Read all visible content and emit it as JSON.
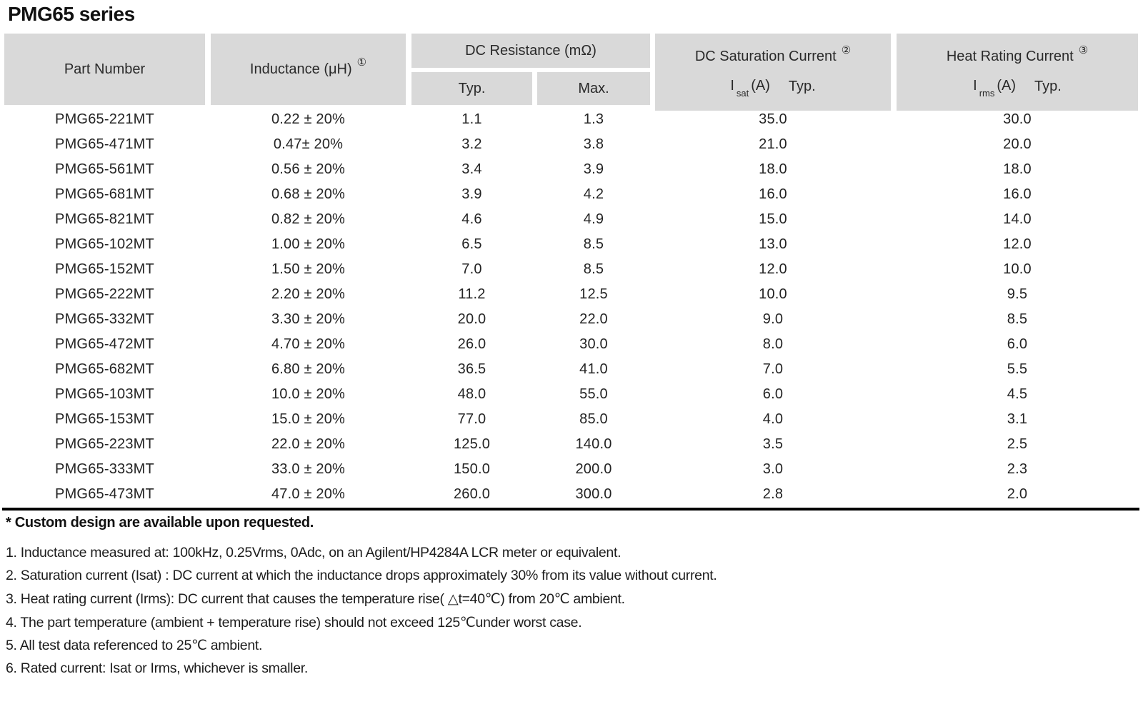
{
  "page": {
    "title": "PMG65 series"
  },
  "colors": {
    "header_bg": "#d9d9d9",
    "rule": "#000000",
    "text": "#1e1e1e"
  },
  "table": {
    "header": {
      "part_number": "Part Number",
      "inductance": {
        "label": "Inductance (μH)",
        "sup": "①"
      },
      "dc_resistance": {
        "label": "DC Resistance (mΩ)",
        "typ": "Typ.",
        "max": "Max."
      },
      "dc_saturation": {
        "label": "DC Saturation Current",
        "sup": "②",
        "sym_base": "I",
        "sym_sub": "sat",
        "sym_rest": "(A)",
        "qual": "Typ."
      },
      "heat_rating": {
        "label": "Heat Rating Current",
        "sup": "③",
        "sym_base": "I",
        "sym_sub": "rms",
        "sym_rest": "(A)",
        "qual": "Typ."
      }
    },
    "rows": [
      [
        "PMG65-221MT",
        "0.22 ± 20%",
        "1.1",
        "1.3",
        "35.0",
        "30.0"
      ],
      [
        "PMG65-471MT",
        "0.47± 20%",
        "3.2",
        "3.8",
        "21.0",
        "20.0"
      ],
      [
        "PMG65-561MT",
        "0.56 ± 20%",
        "3.4",
        "3.9",
        "18.0",
        "18.0"
      ],
      [
        "PMG65-681MT",
        "0.68 ± 20%",
        "3.9",
        "4.2",
        "16.0",
        "16.0"
      ],
      [
        "PMG65-821MT",
        "0.82 ± 20%",
        "4.6",
        "4.9",
        "15.0",
        "14.0"
      ],
      [
        "PMG65-102MT",
        "1.00 ± 20%",
        "6.5",
        "8.5",
        "13.0",
        "12.0"
      ],
      [
        "PMG65-152MT",
        "1.50 ± 20%",
        "7.0",
        "8.5",
        "12.0",
        "10.0"
      ],
      [
        "PMG65-222MT",
        "2.20 ± 20%",
        "11.2",
        "12.5",
        "10.0",
        "9.5"
      ],
      [
        "PMG65-332MT",
        "3.30 ± 20%",
        "20.0",
        "22.0",
        "9.0",
        "8.5"
      ],
      [
        "PMG65-472MT",
        "4.70 ± 20%",
        "26.0",
        "30.0",
        "8.0",
        "6.0"
      ],
      [
        "PMG65-682MT",
        "6.80 ± 20%",
        "36.5",
        "41.0",
        "7.0",
        "5.5"
      ],
      [
        "PMG65-103MT",
        "10.0 ± 20%",
        "48.0",
        "55.0",
        "6.0",
        "4.5"
      ],
      [
        "PMG65-153MT",
        "15.0 ± 20%",
        "77.0",
        "85.0",
        "4.0",
        "3.1"
      ],
      [
        "PMG65-223MT",
        "22.0 ± 20%",
        "125.0",
        "140.0",
        "3.5",
        "2.5"
      ],
      [
        "PMG65-333MT",
        "33.0 ± 20%",
        "150.0",
        "200.0",
        "3.0",
        "2.3"
      ],
      [
        "PMG65-473MT",
        "47.0 ± 20%",
        "260.0",
        "300.0",
        "2.8",
        "2.0"
      ]
    ]
  },
  "notes": {
    "custom": "* Custom design are available upon requested.",
    "items": [
      "1. Inductance measured at: 100kHz, 0.25Vrms, 0Adc, on an Agilent/HP4284A LCR meter or equivalent.",
      "2. Saturation current (Isat) : DC current at which the inductance drops approximately 30% from its value without current.",
      "3. Heat rating current (Irms): DC current that causes the temperature rise( △t=40℃) from 20℃ ambient.",
      "4. The part temperature (ambient + temperature rise) should not exceed 125℃under worst case.",
      "5. All test data referenced to 25℃ ambient.",
      "6. Rated current: Isat or Irms, whichever is smaller."
    ]
  }
}
